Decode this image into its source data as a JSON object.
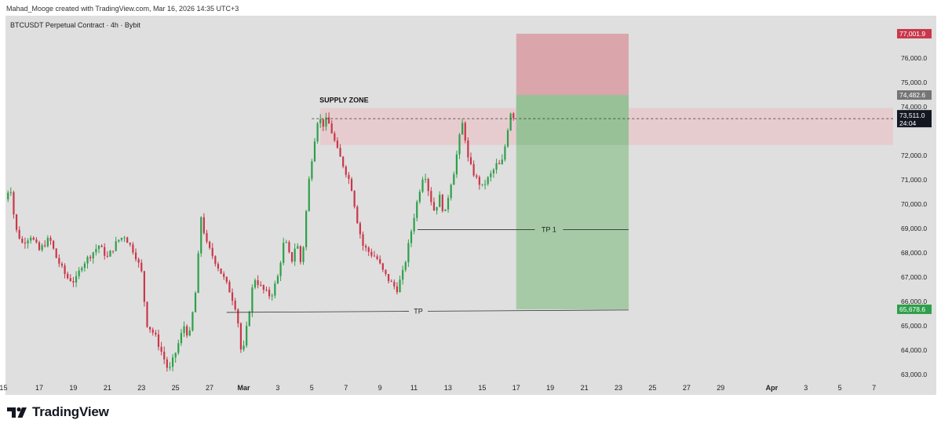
{
  "header": {
    "credit": "Mahad_Mooge created with TradingView.com, Mar 16, 2026 14:35 UTC+3"
  },
  "chart_info": {
    "symbol": "BTCUSDT Perpetual Contract · 4h · Bybit"
  },
  "brand": {
    "name": "TradingView"
  },
  "colors": {
    "up": "#2e9f4a",
    "down": "#c9374a",
    "stop_zone": "#d9a0a6",
    "profit_zone": "#a2c8a2",
    "supply_zone": "#e8c9cc",
    "stop_badge": "#c9374a",
    "target_badge": "#2e9f4a",
    "entry_badge": "#757575",
    "price_badge": "#131722"
  },
  "chart_data": {
    "type": "candlestick",
    "title": "BTCUSDT Perpetual Contract · 4h · Bybit",
    "ylim": [
      62700,
      77450
    ],
    "y_ticks": [
      {
        "value": 76000,
        "label": "76,000.0"
      },
      {
        "value": 75000,
        "label": "75,000.0"
      },
      {
        "value": 74000,
        "label": "74,000.0"
      },
      {
        "value": 72000,
        "label": "72,000.0"
      },
      {
        "value": 71000,
        "label": "71,000.0"
      },
      {
        "value": 70000,
        "label": "70,000.0"
      },
      {
        "value": 69000,
        "label": "69,000.0"
      },
      {
        "value": 68000,
        "label": "68,000.0"
      },
      {
        "value": 67000,
        "label": "67,000.0"
      },
      {
        "value": 66000,
        "label": "66,000.0"
      },
      {
        "value": 65000,
        "label": "65,000.0"
      },
      {
        "value": 64000,
        "label": "64,000.0"
      },
      {
        "value": 63000,
        "label": "63,000.0"
      }
    ],
    "x_ticks": [
      {
        "label": "15",
        "day": -0.1
      },
      {
        "label": "17",
        "day": 2
      },
      {
        "label": "19",
        "day": 4
      },
      {
        "label": "21",
        "day": 6
      },
      {
        "label": "23",
        "day": 8
      },
      {
        "label": "25",
        "day": 10
      },
      {
        "label": "27",
        "day": 12
      },
      {
        "label": "Mar",
        "day": 14
      },
      {
        "label": "3",
        "day": 16
      },
      {
        "label": "5",
        "day": 18
      },
      {
        "label": "7",
        "day": 20
      },
      {
        "label": "9",
        "day": 22
      },
      {
        "label": "11",
        "day": 24
      },
      {
        "label": "13",
        "day": 26
      },
      {
        "label": "15",
        "day": 28
      },
      {
        "label": "17",
        "day": 30
      },
      {
        "label": "19",
        "day": 32
      },
      {
        "label": "21",
        "day": 34
      },
      {
        "label": "23",
        "day": 36
      },
      {
        "label": "25",
        "day": 38
      },
      {
        "label": "27",
        "day": 40
      },
      {
        "label": "29",
        "day": 42
      },
      {
        "label": "Apr",
        "day": 45
      },
      {
        "label": "3",
        "day": 47
      },
      {
        "label": "5",
        "day": 49
      },
      {
        "label": "7",
        "day": 51
      }
    ],
    "price_path": [
      [
        0.0,
        70200
      ],
      [
        0.3,
        70800
      ],
      [
        0.6,
        69000
      ],
      [
        1.0,
        68400
      ],
      [
        1.5,
        68700
      ],
      [
        2.0,
        68100
      ],
      [
        2.6,
        68600
      ],
      [
        3.0,
        67800
      ],
      [
        3.6,
        67000
      ],
      [
        4.1,
        66800
      ],
      [
        4.5,
        67500
      ],
      [
        5.0,
        67900
      ],
      [
        5.5,
        68300
      ],
      [
        6.0,
        67800
      ],
      [
        6.6,
        68500
      ],
      [
        7.0,
        68700
      ],
      [
        7.6,
        68000
      ],
      [
        8.0,
        67200
      ],
      [
        8.3,
        65100
      ],
      [
        8.8,
        64600
      ],
      [
        9.3,
        63700
      ],
      [
        9.6,
        63100
      ],
      [
        10.0,
        63900
      ],
      [
        10.5,
        65000
      ],
      [
        10.8,
        64500
      ],
      [
        11.2,
        66500
      ],
      [
        11.5,
        69500
      ],
      [
        11.8,
        68400
      ],
      [
        12.3,
        67700
      ],
      [
        12.8,
        67000
      ],
      [
        13.2,
        66400
      ],
      [
        13.6,
        65600
      ],
      [
        13.9,
        63600
      ],
      [
        14.3,
        65500
      ],
      [
        14.6,
        67000
      ],
      [
        15.1,
        66500
      ],
      [
        15.6,
        66200
      ],
      [
        16.0,
        67000
      ],
      [
        16.4,
        68600
      ],
      [
        16.8,
        67600
      ],
      [
        17.1,
        68500
      ],
      [
        17.4,
        67400
      ],
      [
        17.8,
        70800
      ],
      [
        18.1,
        72400
      ],
      [
        18.4,
        73700
      ],
      [
        18.6,
        73200
      ],
      [
        18.9,
        73500
      ],
      [
        19.2,
        72900
      ],
      [
        19.5,
        72200
      ],
      [
        19.9,
        71500
      ],
      [
        20.3,
        70800
      ],
      [
        20.7,
        69200
      ],
      [
        21.0,
        68300
      ],
      [
        21.4,
        68000
      ],
      [
        21.8,
        67800
      ],
      [
        22.2,
        67200
      ],
      [
        22.6,
        66800
      ],
      [
        23.0,
        66500
      ],
      [
        23.4,
        67300
      ],
      [
        23.7,
        68400
      ],
      [
        24.0,
        69500
      ],
      [
        24.3,
        70500
      ],
      [
        24.6,
        71400
      ],
      [
        24.9,
        70400
      ],
      [
        25.2,
        69700
      ],
      [
        25.5,
        70300
      ],
      [
        25.8,
        69500
      ],
      [
        26.1,
        70700
      ],
      [
        26.4,
        71500
      ],
      [
        26.6,
        72500
      ],
      [
        26.9,
        73500
      ],
      [
        27.1,
        72000
      ],
      [
        27.4,
        71400
      ],
      [
        27.7,
        71000
      ],
      [
        28.0,
        70700
      ],
      [
        28.3,
        71000
      ],
      [
        28.6,
        71300
      ],
      [
        28.9,
        71700
      ],
      [
        29.1,
        71500
      ],
      [
        29.3,
        72200
      ],
      [
        29.5,
        73100
      ],
      [
        29.7,
        73900
      ],
      [
        29.9,
        73500
      ],
      [
        30.0,
        73511
      ]
    ],
    "annotations": {
      "supply_zone": {
        "label": "SUPPLY ZONE",
        "from_day": 18.5,
        "top": 73950,
        "bottom": 72430
      },
      "stop_zone": {
        "from_day": 30.0,
        "to_day": 36.6,
        "top": 77001.9,
        "bottom": 74482.6
      },
      "profit_zone": {
        "from_day": 30.0,
        "to_day": 36.6,
        "top": 74482.6,
        "bottom": 65678.6
      },
      "tp1": {
        "label": "TP 1",
        "from_day": 24.2,
        "to_day": 36.6,
        "value": 68950
      },
      "tp": {
        "label": "TP",
        "from_day": 13.0,
        "to_day": 36.6,
        "value_start": 65550,
        "value_end": 65650
      },
      "current_price_line": {
        "from_day": 18.0,
        "value": 73511
      }
    },
    "badges": {
      "stop": {
        "value": 77001.9,
        "label": "77,001.9"
      },
      "entry": {
        "value": 74482.6,
        "label": "74,482.6"
      },
      "current": {
        "value": 73511,
        "label": "73,511.0",
        "timer": "24:04"
      },
      "target": {
        "value": 65678.6,
        "label": "65,678.6"
      }
    }
  }
}
